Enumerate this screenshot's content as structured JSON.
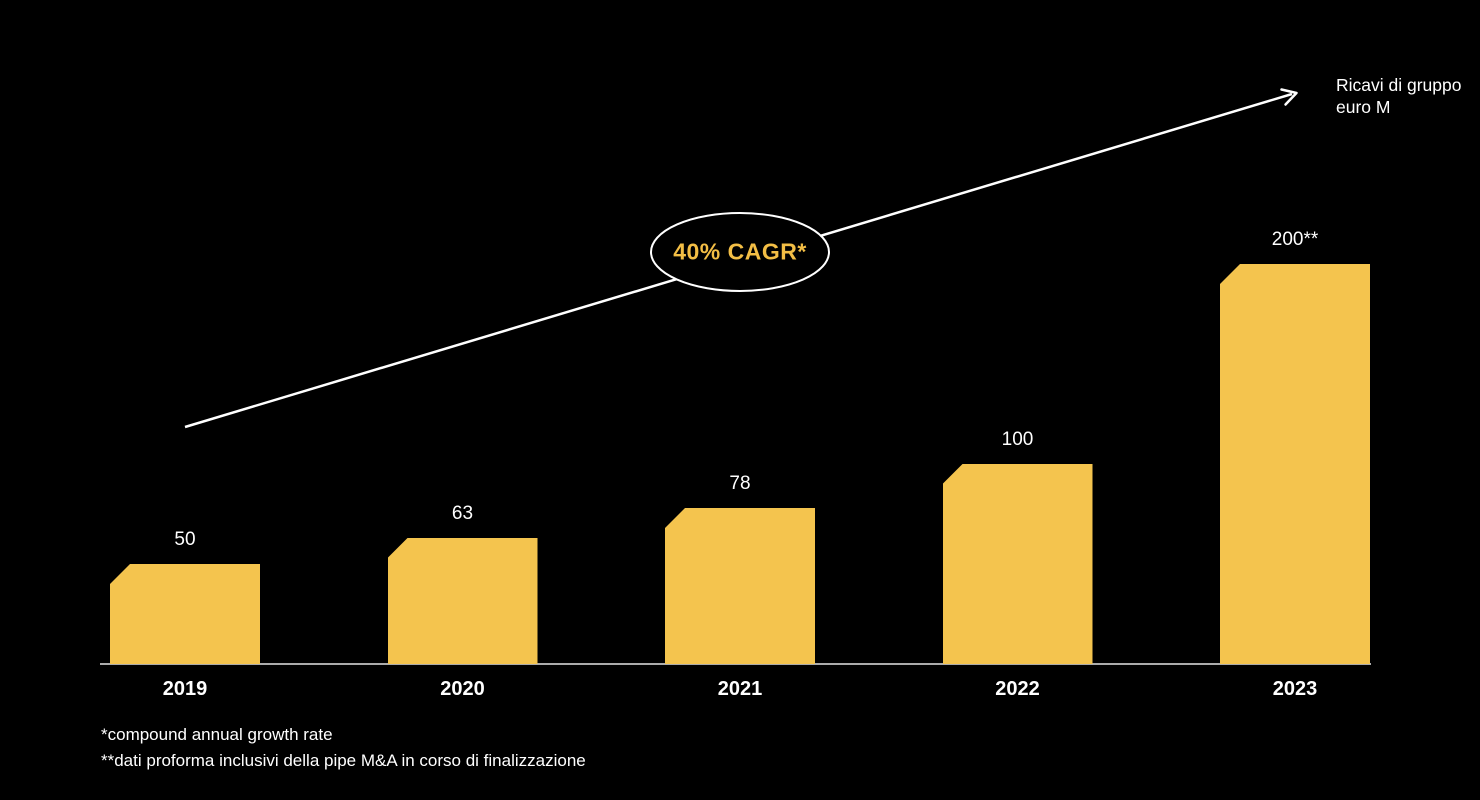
{
  "colors": {
    "background": "#000000",
    "bar": "#F4C44E",
    "accent_text": "#F3BE45",
    "text": "#FFFFFF",
    "baseline": "#ABABAB",
    "arrow": "#FFFFFF"
  },
  "chart_data": {
    "type": "bar",
    "title": "",
    "categories": [
      "2019",
      "2020",
      "2021",
      "2022",
      "2023"
    ],
    "values": [
      50,
      63,
      78,
      100,
      200
    ],
    "value_labels": [
      "50",
      "63",
      "78",
      "100",
      "200**"
    ],
    "ylabel": "Ricavi di gruppo euro M",
    "xlabel": "",
    "ylim": [
      0,
      200
    ],
    "grid": false,
    "legend": false,
    "annotation": "40% CAGR*",
    "trend_arrow": "rising left-to-right"
  },
  "labels": {
    "cagr_badge": "40% CAGR*",
    "axis_note": "Ricavi di gruppo\neuro M",
    "footnote1": "*compound annual growth rate",
    "footnote2": "**dati proforma inclusivi della pipe M&A in corso di finalizzazione"
  }
}
